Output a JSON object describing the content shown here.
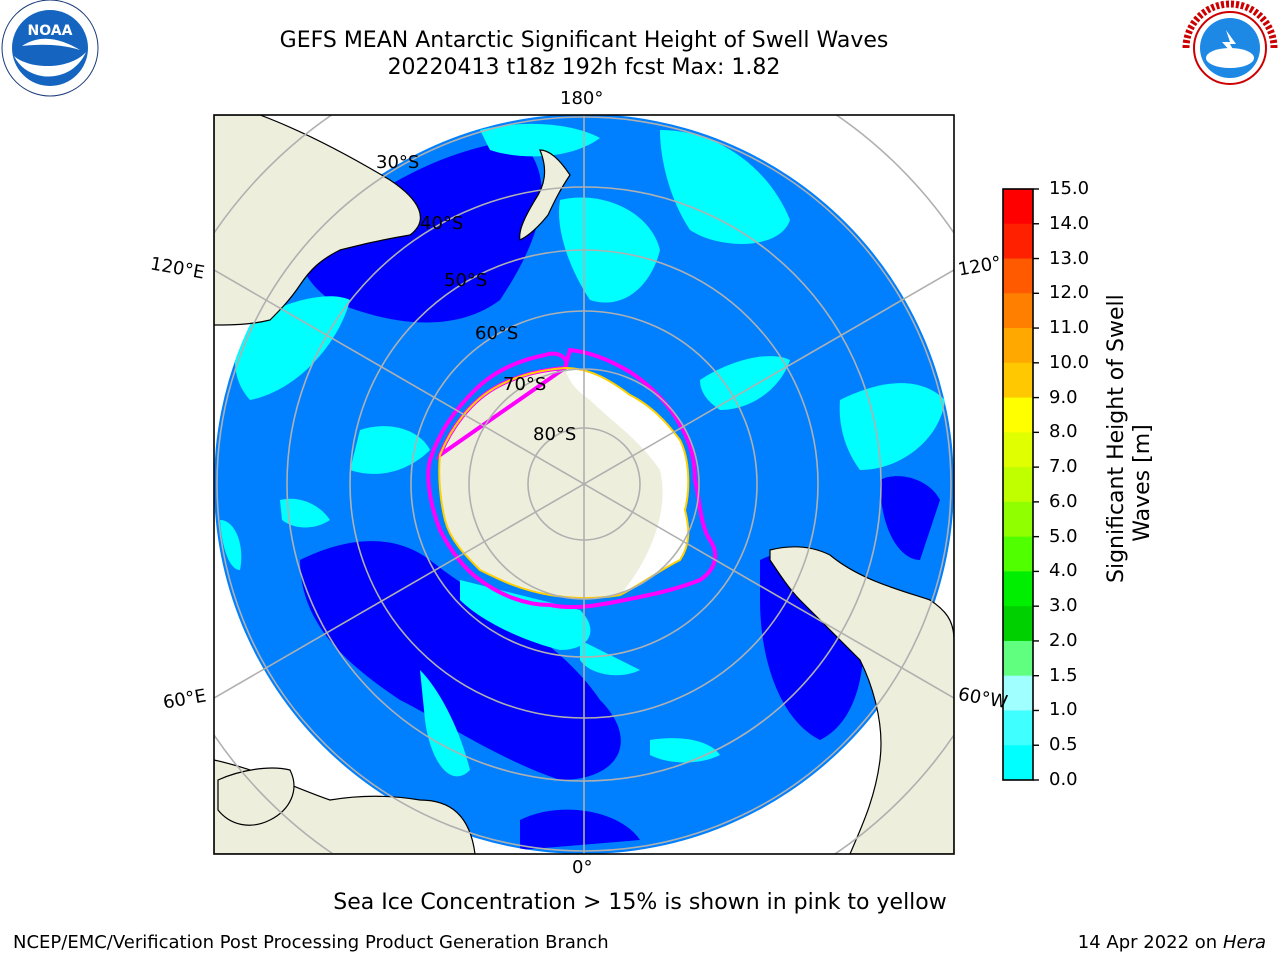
{
  "header": {
    "title_line1": "GEFS MEAN Antarctic Significant Height of Swell Waves",
    "title_line2": "20220413 t18z 192h fcst   Max: 1.82"
  },
  "logos": {
    "left": {
      "name": "noaa-logo",
      "text": "NOAA"
    },
    "right": {
      "name": "national-weather-service-logo",
      "text": "NATIONAL WEATHER SERVICE"
    }
  },
  "map": {
    "projection": "south-polar-stereographic",
    "longitude_labels": {
      "top": "180°",
      "bottom": "0°",
      "left_upper": "120°E",
      "left_lower": "60°E",
      "right_upper": "120°",
      "right_lower": "60°W"
    },
    "latitude_labels": [
      "30°S",
      "40°S",
      "50°S",
      "60°S",
      "70°S",
      "80°S"
    ],
    "colors": {
      "ocean_05_10": "#0080ff",
      "ocean_00_05": "#0000ff",
      "ocean_10_15": "#00ffff",
      "land": "#eeeedd",
      "sea_ice_edge": "#ff00ff",
      "ice_interior": "#ffffff"
    }
  },
  "colorbar": {
    "label": "Significant Height of Swell Waves [m]",
    "label_line1": "Significant Height of Swell",
    "label_line2": "Waves [m]",
    "ticks": [
      "15.0",
      "14.0",
      "13.0",
      "12.0",
      "11.0",
      "10.0",
      "9.0",
      "8.0",
      "7.0",
      "6.0",
      "5.0",
      "4.0",
      "3.0",
      "2.0",
      "1.5",
      "1.0",
      "0.5",
      "0.0"
    ],
    "colors_top_to_bottom": [
      "#ff0000",
      "#ff2000",
      "#ff5a00",
      "#ff8000",
      "#ffa800",
      "#ffc800",
      "#ffff00",
      "#e0ff00",
      "#c0ff00",
      "#90ff00",
      "#50ff00",
      "#00ee00",
      "#00d000",
      "#60ff80",
      "#a0ffff",
      "#40ffff",
      "#00ffff",
      "#0080ff",
      "#0000ff"
    ]
  },
  "footer": {
    "note": "Sea Ice Concentration > 15% is shown in pink to yellow",
    "left": "NCEP/EMC/Verification Post Processing Product Generation Branch",
    "right_date": "14 Apr 2022 on",
    "right_machine": "Hera"
  }
}
